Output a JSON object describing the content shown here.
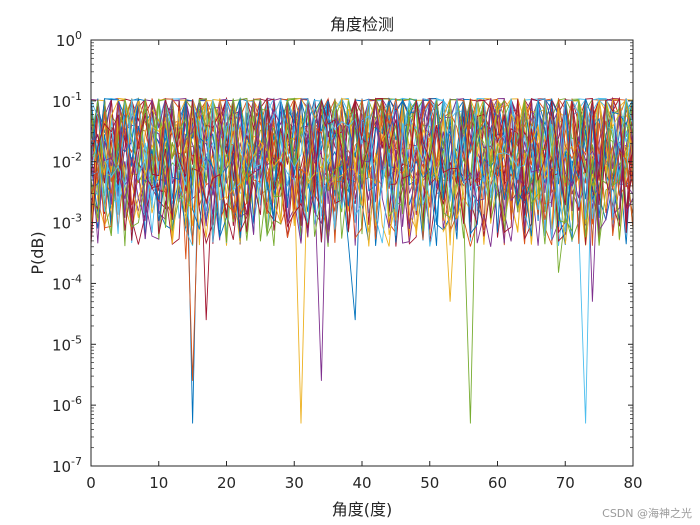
{
  "chart_data": {
    "type": "line",
    "title": "角度检测",
    "xlabel": "角度(度)",
    "ylabel": "P(dB)",
    "xlim": [
      0,
      80
    ],
    "ylim_exponent": [
      -7,
      0
    ],
    "yscale": "log",
    "grid": false,
    "legend": "none",
    "x_ticks": [
      "0",
      "10",
      "20",
      "30",
      "40",
      "50",
      "60",
      "70",
      "80"
    ],
    "y_tick_base": "10",
    "y_tick_exponents": [
      "-7",
      "-6",
      "-5",
      "-4",
      "-3",
      "-2",
      "-1",
      "0"
    ],
    "colors": [
      "#0072BD",
      "#D95319",
      "#EDB120",
      "#7E2F8E",
      "#77AC30",
      "#4DBEEE",
      "#A2142F"
    ],
    "series_count": 42,
    "sample_step": 1,
    "envelope_max": 0.11,
    "deep_nulls": [
      {
        "x": 15,
        "y": 5e-07
      },
      {
        "x": 15,
        "y": 2.5e-06
      },
      {
        "x": 31,
        "y": 5e-07
      },
      {
        "x": 34,
        "y": 2.5e-06
      },
      {
        "x": 56,
        "y": 5e-07
      },
      {
        "x": 73,
        "y": 5e-07
      },
      {
        "x": 17,
        "y": 2.5e-05
      },
      {
        "x": 39,
        "y": 2.5e-05
      },
      {
        "x": 14,
        "y": 0.00025
      },
      {
        "x": 53,
        "y": 5e-05
      },
      {
        "x": 74,
        "y": 5e-05
      },
      {
        "x": 69,
        "y": 0.00015
      }
    ]
  },
  "watermark": "CSDN @海神之光"
}
